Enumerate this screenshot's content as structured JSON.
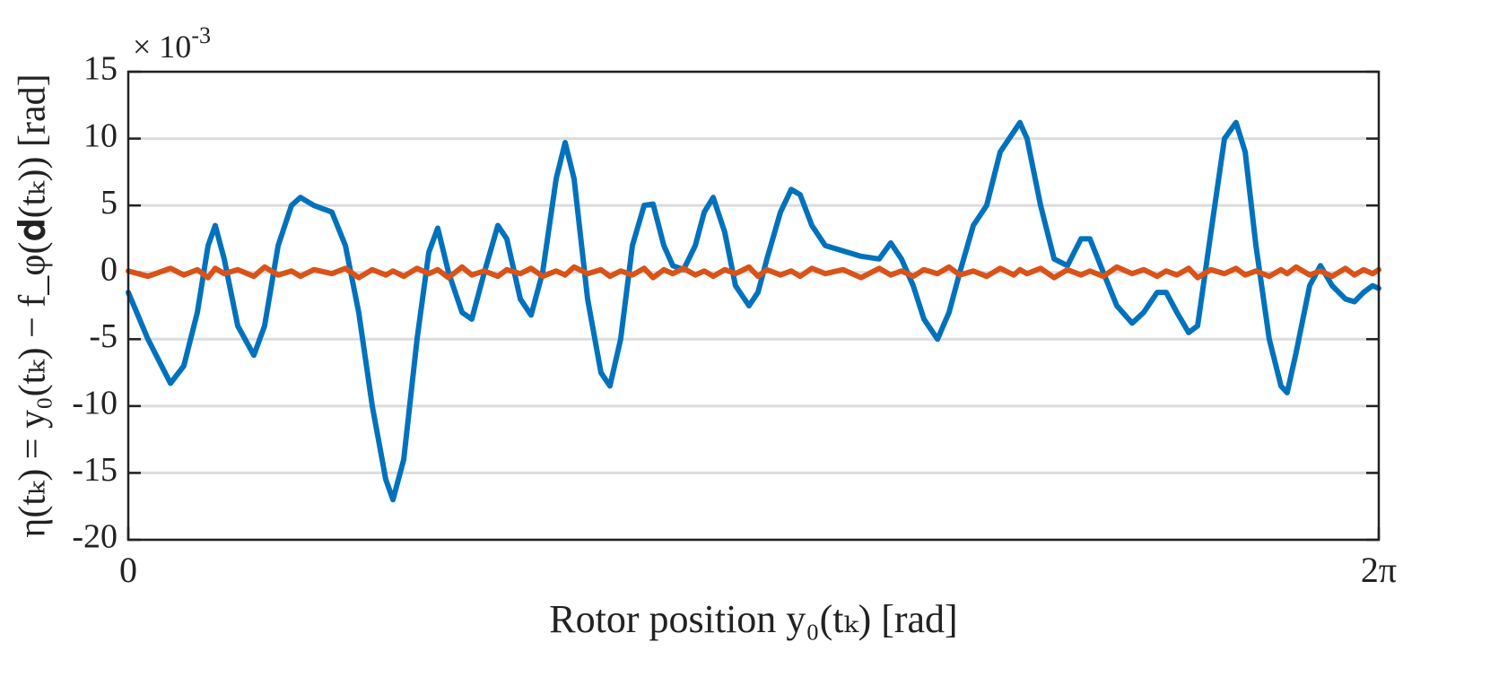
{
  "chart_data": {
    "type": "line",
    "y_label": "η(tₖ) = y₀(tₖ) − f_φ(𝐝(tₖ)) [rad]",
    "x_label": "Rotor position y₀(tₖ) [rad]",
    "y_multiplier": {
      "base": "× 10",
      "exponent": "-3"
    },
    "xlim": [
      0,
      6.2832
    ],
    "xticks": [
      0,
      {
        "value": 6.2832,
        "label": "2π"
      }
    ],
    "ylim": [
      -20,
      15
    ],
    "yticks": [
      -20,
      -15,
      -10,
      -5,
      0,
      5,
      10,
      15
    ],
    "grid": true,
    "x": [
      0,
      0.099,
      0.212,
      0.279,
      0.347,
      0.401,
      0.437,
      0.482,
      0.55,
      0.631,
      0.685,
      0.753,
      0.82,
      0.865,
      0.933,
      1.023,
      1.091,
      1.158,
      1.226,
      1.294,
      1.33,
      1.384,
      1.451,
      1.51,
      1.555,
      1.609,
      1.677,
      1.726,
      1.789,
      1.857,
      1.902,
      1.97,
      2.024,
      2.082,
      2.15,
      2.195,
      2.24,
      2.308,
      2.375,
      2.42,
      2.474,
      2.533,
      2.592,
      2.637,
      2.691,
      2.736,
      2.79,
      2.849,
      2.894,
      2.939,
      2.997,
      3.051,
      3.119,
      3.164,
      3.209,
      3.277,
      3.331,
      3.376,
      3.435,
      3.502,
      3.592,
      3.682,
      3.773,
      3.831,
      3.885,
      3.944,
      3.998,
      4.066,
      4.124,
      4.178,
      4.246,
      4.313,
      4.381,
      4.449,
      4.48,
      4.516,
      4.584,
      4.652,
      4.719,
      4.787,
      4.832,
      4.899,
      4.967,
      5.044,
      5.102,
      5.17,
      5.215,
      5.269,
      5.328,
      5.373,
      5.44,
      5.508,
      5.566,
      5.612,
      5.666,
      5.733,
      5.792,
      5.823,
      5.868,
      5.936,
      5.99,
      6.049,
      6.116,
      6.161,
      6.207,
      6.252,
      6.283
    ],
    "series": [
      {
        "color": "#0072BD",
        "values": [
          -1.5,
          -5,
          -8.3,
          -7,
          -3,
          2,
          3.5,
          1,
          -4,
          -6.2,
          -4,
          2,
          5,
          5.6,
          5,
          4.5,
          2,
          -3,
          -10,
          -15.5,
          -17,
          -14,
          -5,
          1.5,
          3.3,
          0,
          -3,
          -3.5,
          0,
          3.5,
          2.5,
          -2,
          -3.2,
          0,
          7,
          9.7,
          7,
          -2,
          -7.5,
          -8.5,
          -5,
          2,
          5,
          5.1,
          2,
          0.5,
          0.2,
          2,
          4.5,
          5.6,
          3,
          -1,
          -2.5,
          -1.5,
          1,
          4.5,
          6.2,
          5.8,
          3.5,
          2,
          1.6,
          1.2,
          1,
          2.2,
          1,
          -1,
          -3.5,
          -5,
          -3,
          0,
          3.5,
          5,
          9,
          10.5,
          11.2,
          10,
          5,
          1,
          0.5,
          2.5,
          2.5,
          0,
          -2.5,
          -3.8,
          -3,
          -1.5,
          -1.5,
          -3,
          -4.5,
          -4,
          3,
          10,
          11.2,
          9,
          2,
          -5,
          -8.5,
          -9,
          -6,
          -1,
          0.5,
          -1,
          -2,
          -2.2,
          -1.5,
          -1,
          -1.2
        ]
      },
      {
        "color": "#D95319",
        "values": [
          0.1,
          -0.3,
          0.3,
          -0.2,
          0.2,
          -0.4,
          0.3,
          -0.1,
          0.2,
          -0.3,
          0.4,
          -0.2,
          0.1,
          -0.3,
          0.2,
          -0.1,
          0.3,
          -0.4,
          0.2,
          -0.2,
          0.1,
          -0.3,
          0.3,
          -0.1,
          0.2,
          -0.4,
          0.4,
          -0.2,
          0.1,
          -0.3,
          0.2,
          -0.1,
          0.3,
          -0.3,
          0.1,
          -0.2,
          0.4,
          -0.1,
          0.2,
          -0.3,
          0.1,
          -0.2,
          0.3,
          -0.4,
          0.2,
          -0.1,
          0.3,
          -0.2,
          0.1,
          -0.3,
          0.2,
          -0.1,
          0.4,
          -0.3,
          0.2,
          -0.2,
          0.1,
          -0.3,
          0.3,
          -0.1,
          0.2,
          -0.4,
          0.3,
          -0.2,
          0.1,
          -0.3,
          0.2,
          -0.1,
          0.4,
          -0.2,
          0.1,
          -0.3,
          0.3,
          -0.2,
          0.2,
          -0.1,
          0.3,
          -0.4,
          0.2,
          -0.2,
          0.1,
          -0.3,
          0.4,
          -0.1,
          0.2,
          -0.3,
          0.1,
          -0.2,
          0.3,
          -0.4,
          0.2,
          -0.1,
          0.3,
          -0.2,
          0.1,
          -0.3,
          0.2,
          -0.1,
          0.4,
          -0.2,
          0.1,
          -0.3,
          0.3,
          -0.2,
          0.2,
          -0.1,
          0.2
        ]
      }
    ]
  }
}
